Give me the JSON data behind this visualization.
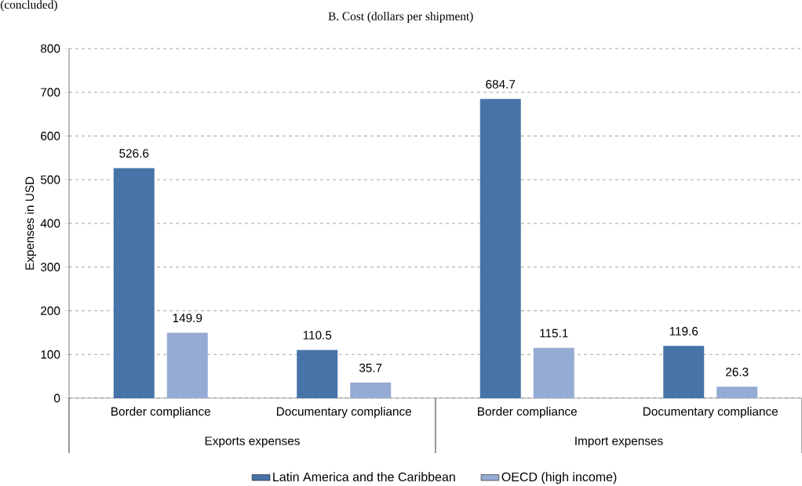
{
  "chart_data": {
    "type": "bar",
    "title": "B. Cost (dollars per shipment)",
    "ylabel": "Expenses in USD",
    "categories": [
      "Border compliance",
      "Documentary compliance",
      "Border compliance",
      "Documentary compliance"
    ],
    "series": [
      {
        "name": "Latin America and the Caribbean",
        "color": "#4674a8",
        "values": [
          526.6,
          110.5,
          684.7,
          119.6
        ]
      },
      {
        "name": "OECD (high income)",
        "color": "#95abd3",
        "values": [
          149.9,
          35.7,
          115.1,
          26.3
        ]
      }
    ],
    "annotations": [
      "(concluded)",
      "Exports expenses",
      "Import expenses"
    ],
    "ylim": [
      0,
      800
    ],
    "yticks": [
      0,
      100,
      200,
      300,
      400,
      500,
      600,
      700,
      800
    ],
    "grid": "y",
    "data_labels": true,
    "legend": "bottom"
  }
}
